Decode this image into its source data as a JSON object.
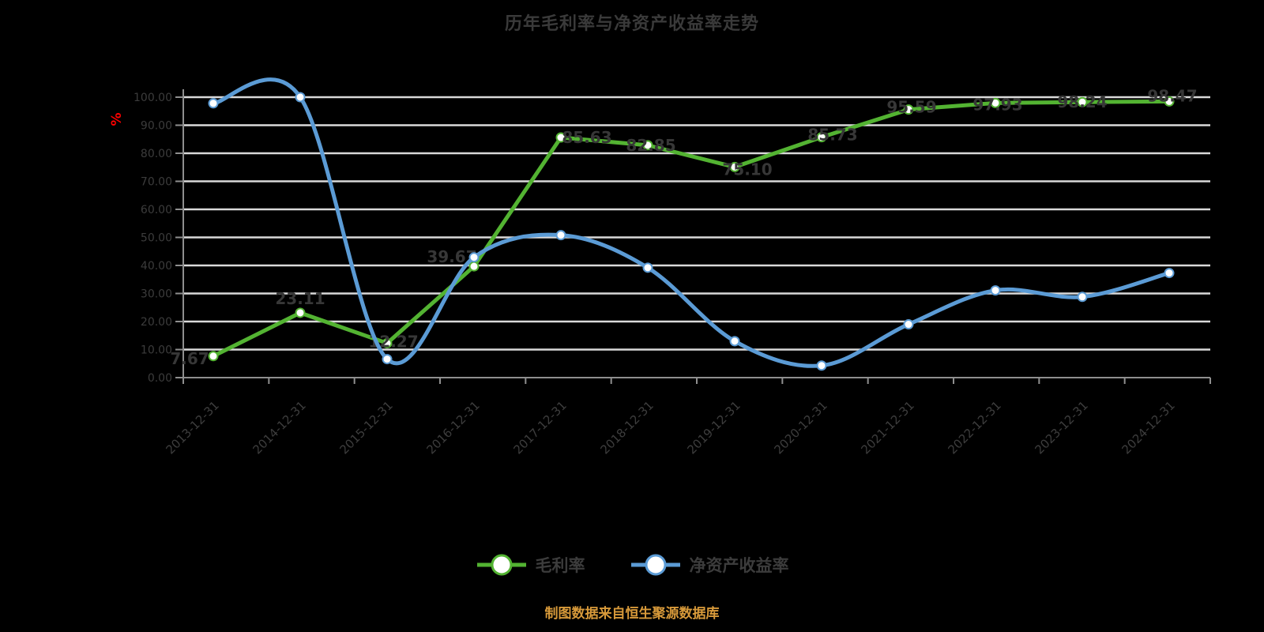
{
  "page": {
    "background": "#000000"
  },
  "title": {
    "text": "历年毛利率与净资产收益率走势",
    "color": "#3a3a3a"
  },
  "y_axis": {
    "unit": "%",
    "unit_color": "#ff0000",
    "ticks": [
      "0.00",
      "10.00",
      "20.00",
      "30.00",
      "40.00",
      "50.00",
      "60.00",
      "70.00",
      "80.00",
      "90.00",
      "100.00"
    ],
    "min": 0,
    "max": 100,
    "label_color": "#3c3c3c",
    "grid_color": "#d9d9d9",
    "axis_color": "#8f8f8f"
  },
  "x_axis": {
    "label_color": "#3d3d3d",
    "rotation": -45
  },
  "legend": [
    {
      "label": "毛利率",
      "color": "#53b332"
    },
    {
      "label": "净资产收益率",
      "color": "#5b9bd5"
    }
  ],
  "footer": {
    "text": "制图数据来自恒生聚源数据库",
    "color": "#d89a3a"
  },
  "chart_data": {
    "type": "line",
    "title": "历年毛利率与净资产收益率走势",
    "ylabel": "%",
    "ylim": [
      0,
      100
    ],
    "grid": true,
    "legend_position": "bottom",
    "categories": [
      "2013-12-31",
      "2014-12-31",
      "2015-12-31",
      "2016-12-31",
      "2017-12-31",
      "2018-12-31",
      "2019-12-31",
      "2020-12-31",
      "2021-12-31",
      "2022-12-31",
      "2023-12-31",
      "2024-12-31"
    ],
    "series": [
      {
        "name": "毛利率",
        "color": "#53b332",
        "marker_fill": "#ffffff",
        "smooth": false,
        "show_labels": true,
        "values": [
          7.67,
          23.11,
          12.27,
          39.67,
          85.63,
          82.85,
          75.1,
          85.73,
          95.59,
          97.93,
          98.24,
          98.47
        ],
        "labels": [
          "7.67",
          "23.11",
          "12.27",
          "39.67",
          "85.63",
          "82.85",
          "75.10",
          "85.73",
          "95.59",
          "97.93",
          "98.24",
          "98.47"
        ],
        "label_offsets": [
          [
            -30,
            4
          ],
          [
            0,
            -17
          ],
          [
            8,
            -1
          ],
          [
            -28,
            -11
          ],
          [
            33,
            1
          ],
          [
            4,
            1
          ],
          [
            16,
            4
          ],
          [
            14,
            -2
          ],
          [
            4,
            -2
          ],
          [
            3,
            3
          ],
          [
            0,
            1
          ],
          [
            4,
            -6
          ]
        ]
      },
      {
        "name": "净资产收益率",
        "color": "#5b9bd5",
        "marker_fill": "#ffffff",
        "smooth": true,
        "show_labels": false,
        "values": [
          97.8,
          100.0,
          6.6,
          42.9,
          50.8,
          39.2,
          13.0,
          4.3,
          19.0,
          31.1,
          28.8,
          37.3
        ]
      }
    ]
  }
}
